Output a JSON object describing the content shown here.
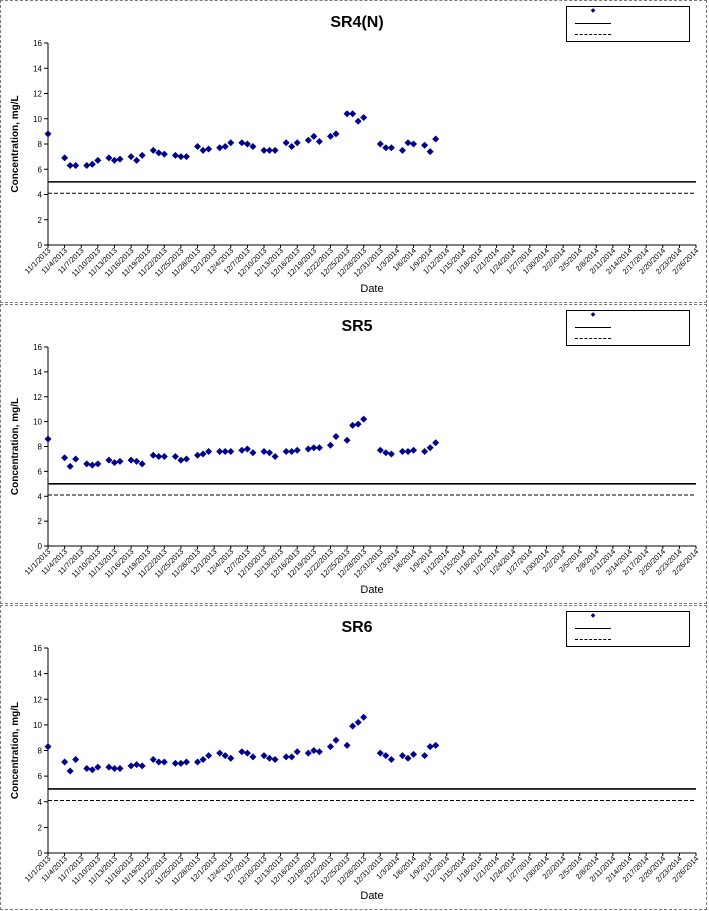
{
  "chart_data": [
    {
      "type": "scatter",
      "title": "SR4(N)",
      "xlabel": "Date",
      "ylabel": "Concentration, mg/L",
      "ylim": [
        0,
        16
      ],
      "yticks": [
        "0",
        "2",
        "4",
        "6",
        "8",
        "10",
        "12",
        "14",
        "16"
      ],
      "legend_position": "top-right",
      "xtick_labels": [
        "11/1/2013",
        "11/4/2013",
        "11/7/2013",
        "11/10/2013",
        "11/13/2013",
        "11/16/2013",
        "11/19/2013",
        "11/22/2013",
        "11/25/2013",
        "11/28/2013",
        "12/1/2013",
        "12/4/2013",
        "12/7/2013",
        "12/10/2013",
        "12/13/2013",
        "12/16/2013",
        "12/19/2013",
        "12/22/2013",
        "12/25/2013",
        "12/28/2013",
        "12/31/2013",
        "1/3/2014",
        "1/6/2014",
        "1/9/2014",
        "1/12/2014",
        "1/15/2014",
        "1/18/2014",
        "1/21/2014",
        "1/24/2014",
        "1/27/2014",
        "1/30/2014",
        "2/2/2014",
        "2/5/2014",
        "2/8/2014",
        "2/11/2014",
        "2/14/2014",
        "2/17/2014",
        "2/20/2014",
        "2/23/2014",
        "2/26/2014"
      ],
      "series": [
        {
          "kind": "points",
          "color": "#00008b",
          "points": [
            [
              "11/1/2013",
              8.8
            ],
            [
              "11/4/2013",
              6.9
            ],
            [
              "11/5/2013",
              6.3
            ],
            [
              "11/6/2013",
              6.3
            ],
            [
              "11/8/2013",
              6.3
            ],
            [
              "11/9/2013",
              6.4
            ],
            [
              "11/10/2013",
              6.7
            ],
            [
              "11/12/2013",
              6.9
            ],
            [
              "11/13/2013",
              6.7
            ],
            [
              "11/14/2013",
              6.8
            ],
            [
              "11/16/2013",
              7.0
            ],
            [
              "11/17/2013",
              6.7
            ],
            [
              "11/18/2013",
              7.1
            ],
            [
              "11/20/2013",
              7.5
            ],
            [
              "11/21/2013",
              7.3
            ],
            [
              "11/22/2013",
              7.2
            ],
            [
              "11/24/2013",
              7.1
            ],
            [
              "11/25/2013",
              7.0
            ],
            [
              "11/26/2013",
              7.0
            ],
            [
              "11/28/2013",
              7.8
            ],
            [
              "11/29/2013",
              7.5
            ],
            [
              "11/30/2013",
              7.6
            ],
            [
              "12/2/2013",
              7.7
            ],
            [
              "12/3/2013",
              7.8
            ],
            [
              "12/4/2013",
              8.1
            ],
            [
              "12/6/2013",
              8.1
            ],
            [
              "12/7/2013",
              8.0
            ],
            [
              "12/8/2013",
              7.8
            ],
            [
              "12/10/2013",
              7.5
            ],
            [
              "12/11/2013",
              7.5
            ],
            [
              "12/12/2013",
              7.5
            ],
            [
              "12/14/2013",
              8.1
            ],
            [
              "12/15/2013",
              7.8
            ],
            [
              "12/16/2013",
              8.1
            ],
            [
              "12/18/2013",
              8.3
            ],
            [
              "12/19/2013",
              8.6
            ],
            [
              "12/20/2013",
              8.2
            ],
            [
              "12/22/2013",
              8.6
            ],
            [
              "12/23/2013",
              8.8
            ],
            [
              "12/25/2013",
              10.4
            ],
            [
              "12/26/2013",
              10.4
            ],
            [
              "12/27/2013",
              9.8
            ],
            [
              "12/28/2013",
              10.1
            ],
            [
              "12/31/2013",
              8.0
            ],
            [
              "1/1/2014",
              7.7
            ],
            [
              "1/2/2014",
              7.7
            ],
            [
              "1/4/2014",
              7.5
            ],
            [
              "1/5/2014",
              8.1
            ],
            [
              "1/6/2014",
              8.0
            ],
            [
              "1/8/2014",
              7.9
            ],
            [
              "1/9/2014",
              7.4
            ],
            [
              "1/10/2014",
              8.4
            ]
          ]
        },
        {
          "kind": "solid_line",
          "y": 5.0
        },
        {
          "kind": "dashed_line",
          "y": 4.1
        }
      ]
    },
    {
      "type": "scatter",
      "title": "SR5",
      "xlabel": "Date",
      "ylabel": "Concentration, mg/L",
      "ylim": [
        0,
        16
      ],
      "yticks": [
        "0",
        "2",
        "4",
        "6",
        "8",
        "10",
        "12",
        "14",
        "16"
      ],
      "legend_position": "top-right",
      "xtick_labels": [
        "11/1/2013",
        "11/4/2013",
        "11/7/2013",
        "11/10/2013",
        "11/13/2013",
        "11/16/2013",
        "11/19/2013",
        "11/22/2013",
        "11/25/2013",
        "11/28/2013",
        "12/1/2013",
        "12/4/2013",
        "12/7/2013",
        "12/10/2013",
        "12/13/2013",
        "12/16/2013",
        "12/19/2013",
        "12/22/2013",
        "12/25/2013",
        "12/28/2013",
        "12/31/2013",
        "1/3/2014",
        "1/6/2014",
        "1/9/2014",
        "1/12/2014",
        "1/15/2014",
        "1/18/2014",
        "1/21/2014",
        "1/24/2014",
        "1/27/2014",
        "1/30/2014",
        "2/2/2014",
        "2/5/2014",
        "2/8/2014",
        "2/11/2014",
        "2/14/2014",
        "2/17/2014",
        "2/20/2014",
        "2/23/2014",
        "2/26/2014"
      ],
      "series": [
        {
          "kind": "points",
          "color": "#00008b",
          "points": [
            [
              "11/1/2013",
              8.6
            ],
            [
              "11/4/2013",
              7.1
            ],
            [
              "11/5/2013",
              6.4
            ],
            [
              "11/6/2013",
              7.0
            ],
            [
              "11/8/2013",
              6.6
            ],
            [
              "11/9/2013",
              6.5
            ],
            [
              "11/10/2013",
              6.6
            ],
            [
              "11/12/2013",
              6.9
            ],
            [
              "11/13/2013",
              6.7
            ],
            [
              "11/14/2013",
              6.8
            ],
            [
              "11/16/2013",
              6.9
            ],
            [
              "11/17/2013",
              6.8
            ],
            [
              "11/18/2013",
              6.6
            ],
            [
              "11/20/2013",
              7.3
            ],
            [
              "11/21/2013",
              7.2
            ],
            [
              "11/22/2013",
              7.2
            ],
            [
              "11/24/2013",
              7.2
            ],
            [
              "11/25/2013",
              6.9
            ],
            [
              "11/26/2013",
              7.0
            ],
            [
              "11/28/2013",
              7.3
            ],
            [
              "11/29/2013",
              7.4
            ],
            [
              "11/30/2013",
              7.6
            ],
            [
              "12/2/2013",
              7.6
            ],
            [
              "12/3/2013",
              7.6
            ],
            [
              "12/4/2013",
              7.6
            ],
            [
              "12/6/2013",
              7.7
            ],
            [
              "12/7/2013",
              7.8
            ],
            [
              "12/8/2013",
              7.5
            ],
            [
              "12/10/2013",
              7.6
            ],
            [
              "12/11/2013",
              7.5
            ],
            [
              "12/12/2013",
              7.2
            ],
            [
              "12/14/2013",
              7.6
            ],
            [
              "12/15/2013",
              7.6
            ],
            [
              "12/16/2013",
              7.7
            ],
            [
              "12/18/2013",
              7.8
            ],
            [
              "12/19/2013",
              7.9
            ],
            [
              "12/20/2013",
              7.9
            ],
            [
              "12/22/2013",
              8.1
            ],
            [
              "12/23/2013",
              8.8
            ],
            [
              "12/25/2013",
              8.5
            ],
            [
              "12/26/2013",
              9.7
            ],
            [
              "12/27/2013",
              9.8
            ],
            [
              "12/28/2013",
              10.2
            ],
            [
              "12/31/2013",
              7.7
            ],
            [
              "1/1/2014",
              7.5
            ],
            [
              "1/2/2014",
              7.4
            ],
            [
              "1/4/2014",
              7.6
            ],
            [
              "1/5/2014",
              7.6
            ],
            [
              "1/6/2014",
              7.7
            ],
            [
              "1/8/2014",
              7.6
            ],
            [
              "1/9/2014",
              7.9
            ],
            [
              "1/10/2014",
              8.3
            ]
          ]
        },
        {
          "kind": "solid_line",
          "y": 5.0
        },
        {
          "kind": "dashed_line",
          "y": 4.1
        }
      ]
    },
    {
      "type": "scatter",
      "title": "SR6",
      "xlabel": "Date",
      "ylabel": "Concentration, mg/L",
      "ylim": [
        0,
        16
      ],
      "yticks": [
        "0",
        "2",
        "4",
        "6",
        "8",
        "10",
        "12",
        "14",
        "16"
      ],
      "legend_position": "top-right",
      "xtick_labels": [
        "11/1/2013",
        "11/4/2013",
        "11/7/2013",
        "11/10/2013",
        "11/13/2013",
        "11/16/2013",
        "11/19/2013",
        "11/22/2013",
        "11/25/2013",
        "11/28/2013",
        "12/1/2013",
        "12/4/2013",
        "12/7/2013",
        "12/10/2013",
        "12/13/2013",
        "12/16/2013",
        "12/19/2013",
        "12/22/2013",
        "12/25/2013",
        "12/28/2013",
        "12/31/2013",
        "1/3/2014",
        "1/6/2014",
        "1/9/2014",
        "1/12/2014",
        "1/15/2014",
        "1/18/2014",
        "1/21/2014",
        "1/24/2014",
        "1/27/2014",
        "1/30/2014",
        "2/2/2014",
        "2/5/2014",
        "2/8/2014",
        "2/11/2014",
        "2/14/2014",
        "2/17/2014",
        "2/20/2014",
        "2/23/2014",
        "2/26/2014"
      ],
      "series": [
        {
          "kind": "points",
          "color": "#00008b",
          "points": [
            [
              "11/1/2013",
              8.3
            ],
            [
              "11/4/2013",
              7.1
            ],
            [
              "11/5/2013",
              6.4
            ],
            [
              "11/6/2013",
              7.3
            ],
            [
              "11/8/2013",
              6.6
            ],
            [
              "11/9/2013",
              6.5
            ],
            [
              "11/10/2013",
              6.7
            ],
            [
              "11/12/2013",
              6.7
            ],
            [
              "11/13/2013",
              6.6
            ],
            [
              "11/14/2013",
              6.6
            ],
            [
              "11/16/2013",
              6.8
            ],
            [
              "11/17/2013",
              6.9
            ],
            [
              "11/18/2013",
              6.8
            ],
            [
              "11/20/2013",
              7.3
            ],
            [
              "11/21/2013",
              7.1
            ],
            [
              "11/22/2013",
              7.1
            ],
            [
              "11/24/2013",
              7.0
            ],
            [
              "11/25/2013",
              7.0
            ],
            [
              "11/26/2013",
              7.1
            ],
            [
              "11/28/2013",
              7.1
            ],
            [
              "11/29/2013",
              7.3
            ],
            [
              "11/30/2013",
              7.6
            ],
            [
              "12/2/2013",
              7.8
            ],
            [
              "12/3/2013",
              7.6
            ],
            [
              "12/4/2013",
              7.4
            ],
            [
              "12/6/2013",
              7.9
            ],
            [
              "12/7/2013",
              7.8
            ],
            [
              "12/8/2013",
              7.5
            ],
            [
              "12/10/2013",
              7.6
            ],
            [
              "12/11/2013",
              7.4
            ],
            [
              "12/12/2013",
              7.3
            ],
            [
              "12/14/2013",
              7.5
            ],
            [
              "12/15/2013",
              7.5
            ],
            [
              "12/16/2013",
              7.9
            ],
            [
              "12/18/2013",
              7.8
            ],
            [
              "12/19/2013",
              8.0
            ],
            [
              "12/20/2013",
              7.9
            ],
            [
              "12/22/2013",
              8.3
            ],
            [
              "12/23/2013",
              8.8
            ],
            [
              "12/25/2013",
              8.4
            ],
            [
              "12/26/2013",
              9.9
            ],
            [
              "12/27/2013",
              10.2
            ],
            [
              "12/28/2013",
              10.6
            ],
            [
              "12/31/2013",
              7.8
            ],
            [
              "1/1/2014",
              7.6
            ],
            [
              "1/2/2014",
              7.3
            ],
            [
              "1/4/2014",
              7.6
            ],
            [
              "1/5/2014",
              7.4
            ],
            [
              "1/6/2014",
              7.7
            ],
            [
              "1/8/2014",
              7.6
            ],
            [
              "1/9/2014",
              8.3
            ],
            [
              "1/10/2014",
              8.4
            ]
          ]
        },
        {
          "kind": "solid_line",
          "y": 5.0
        },
        {
          "kind": "dashed_line",
          "y": 4.1
        }
      ]
    }
  ]
}
